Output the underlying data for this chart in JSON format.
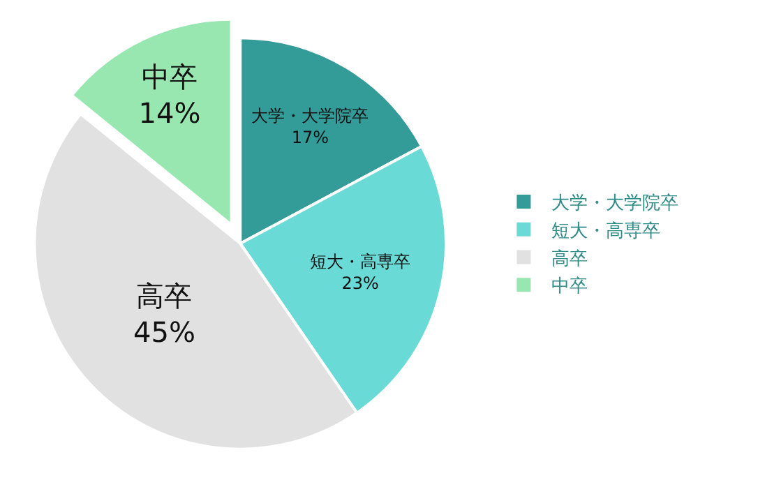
{
  "chart_data": {
    "type": "pie",
    "categories": [
      "大学・大学院卒",
      "短大・高専卒",
      "高卒",
      "中卒"
    ],
    "values": [
      17,
      23,
      45,
      14
    ],
    "value_labels": [
      "17%",
      "23%",
      "45%",
      "14%"
    ],
    "colors": [
      "#339b98",
      "#6adad6",
      "#e1e1e1",
      "#98e6b0"
    ],
    "legend": "right"
  }
}
